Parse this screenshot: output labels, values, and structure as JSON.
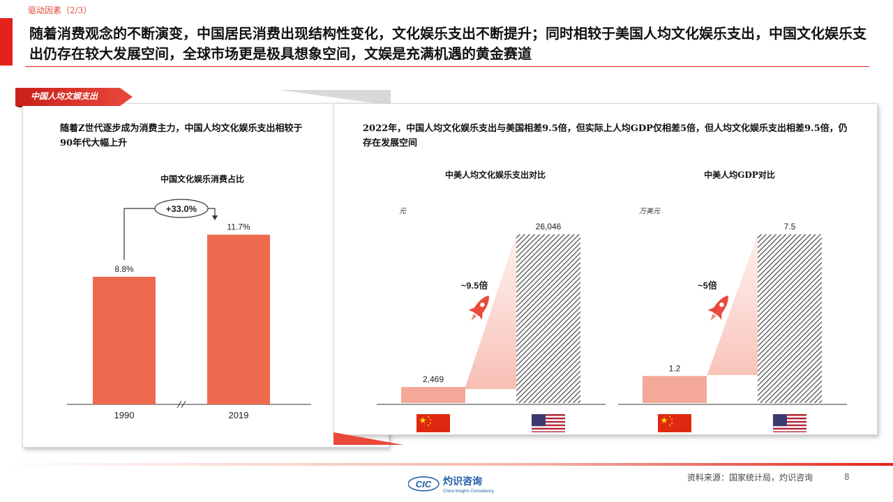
{
  "header": {
    "section": "驱动因素（2/3）",
    "title": "随着消费观念的不断演变，中国居民消费出现结构性变化，文化娱乐支出不断提升；同时相较于美国人均文化娱乐支出，中国文化娱乐支出仍存在较大发展空间，全球市场更是极具想象空间，文娱是充满机遇的黄金赛道"
  },
  "left_panel": {
    "tab": "中国人均文娱支出",
    "description": "随着Z世代逐步成为消费主力，中国人均文化娱乐支出相较于90年代大幅上升",
    "growth_label": "+33.0%"
  },
  "right_panel": {
    "description": "2022年，中国人均文化娱乐支出与美国相差9.5倍，但实际上人均GDP仅相差5倍，但人均文化娱乐支出相差9.5倍，仍存在发展空间",
    "spend_multiple": "~9.5倍",
    "gdp_multiple": "~5倍"
  },
  "chart_data": [
    {
      "type": "bar",
      "title": "中国文化娱乐消费占比",
      "categories": [
        "1990",
        "2019"
      ],
      "values": [
        8.8,
        11.7
      ],
      "value_labels": [
        "8.8%",
        "11.7%"
      ],
      "ylim": [
        0,
        12.5
      ],
      "color": "#ee6a4e"
    },
    {
      "type": "bar",
      "title": "中美人均文化娱乐支出对比",
      "unit": "元",
      "categories": [
        "中国",
        "美国"
      ],
      "values": [
        2469,
        26046
      ],
      "value_labels": [
        "2,469",
        "26,046"
      ],
      "ylim": [
        0,
        26046
      ],
      "colors": [
        "#f3a898",
        "hatched-gray"
      ]
    },
    {
      "type": "bar",
      "title": "中美人均GDP对比",
      "unit": "万美元",
      "categories": [
        "中国",
        "美国"
      ],
      "values": [
        1.2,
        7.5
      ],
      "value_labels": [
        "1.2",
        "7.5"
      ],
      "ylim": [
        0,
        7.5
      ],
      "colors": [
        "#f3a898",
        "hatched-gray"
      ]
    }
  ],
  "footer": {
    "source": "资料来源：国家统计局，灼识咨询",
    "page": "8",
    "logo_mark": "CIC",
    "logo_cn": "灼识咨询",
    "logo_en": "China Insights Consultancy"
  },
  "colors": {
    "accent": "#e3231b",
    "bar": "#ee6a4e",
    "bar_light": "#f3a898"
  }
}
